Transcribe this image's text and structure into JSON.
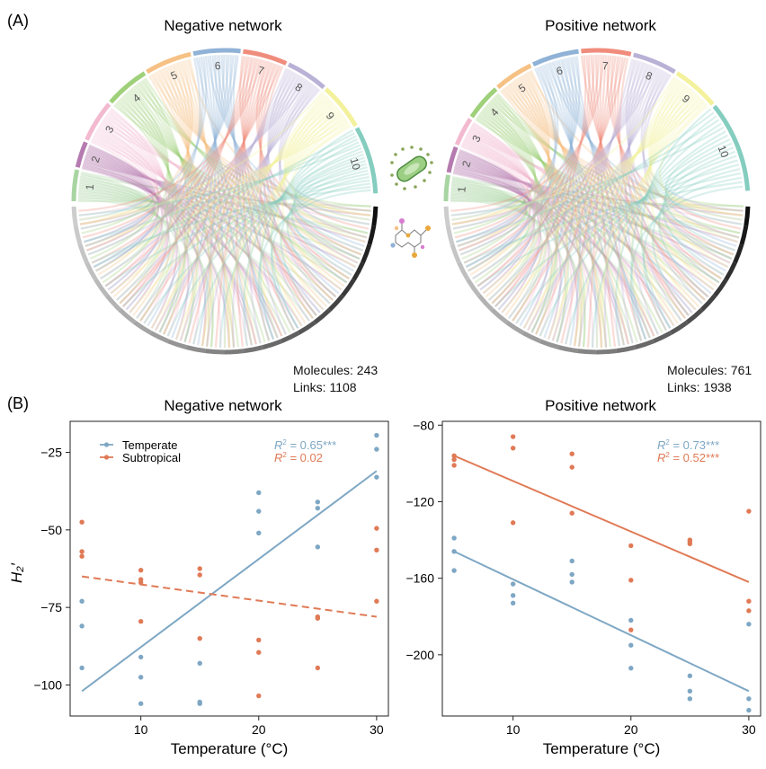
{
  "panel_a": {
    "label": "(A)",
    "negative": {
      "title": "Negative network",
      "molecules_label": "Molecules: 243",
      "links_label": "Links: 1108",
      "sectors": [
        "1",
        "2",
        "3",
        "4",
        "5",
        "6",
        "7",
        "8",
        "9",
        "10"
      ]
    },
    "positive": {
      "title": "Positive network",
      "molecules_label": "Molecules: 761",
      "links_label": "Links: 1938",
      "sectors": [
        "1",
        "2",
        "3",
        "4",
        "5",
        "6",
        "7",
        "8",
        "9",
        "10"
      ]
    },
    "sector_colors": [
      "#a8d5a2",
      "#b57bb0",
      "#f2b9cf",
      "#9fd07a",
      "#f6c184",
      "#8fb2d6",
      "#f08c7c",
      "#b9b1d6",
      "#f3f19b",
      "#84cdbf"
    ]
  },
  "panel_b": {
    "label": "(B)",
    "legend": [
      {
        "name": "Temperate",
        "color": "#7ea7c4"
      },
      {
        "name": "Subtropical",
        "color": "#e07a56"
      }
    ]
  },
  "chart_data": [
    {
      "type": "scatter",
      "title": "Negative network",
      "xlabel": "Temperature (°C)",
      "ylabel": "H₂′",
      "xlim": [
        4,
        31
      ],
      "ylim": [
        -110,
        -15
      ],
      "xticks": [
        10,
        20,
        30
      ],
      "yticks": [
        -25,
        -50,
        -75,
        -100
      ],
      "series": [
        {
          "name": "Temperate",
          "color": "#7ea7c4",
          "annotation_r2": "0.65",
          "annotation_sig": "***",
          "fit": {
            "x": [
              5,
              30
            ],
            "y": [
              -102,
              -31
            ],
            "style": "solid"
          },
          "points": [
            [
              5,
              -73
            ],
            [
              5,
              -81
            ],
            [
              5,
              -94.5
            ],
            [
              10,
              -91
            ],
            [
              10,
              -97.5
            ],
            [
              10,
              -106
            ],
            [
              15,
              -93
            ],
            [
              15,
              -105.5
            ],
            [
              15,
              -106
            ],
            [
              20,
              -38
            ],
            [
              20,
              -44
            ],
            [
              20,
              -51
            ],
            [
              25,
              -41
            ],
            [
              25,
              -43
            ],
            [
              25,
              -55.5
            ],
            [
              30,
              -19.5
            ],
            [
              30,
              -24
            ],
            [
              30,
              -33
            ]
          ]
        },
        {
          "name": "Subtropical",
          "color": "#e07a56",
          "annotation_r2": "0.02",
          "annotation_sig": "",
          "fit": {
            "x": [
              5,
              30
            ],
            "y": [
              -65,
              -78
            ],
            "style": "dashed"
          },
          "points": [
            [
              5,
              -47.5
            ],
            [
              5,
              -57
            ],
            [
              5,
              -58.5
            ],
            [
              10,
              -63
            ],
            [
              10,
              -66
            ],
            [
              10,
              -67
            ],
            [
              10,
              -79.5
            ],
            [
              15,
              -62.5
            ],
            [
              15,
              -64.5
            ],
            [
              15,
              -85
            ],
            [
              20,
              -85.5
            ],
            [
              20,
              -89.5
            ],
            [
              20,
              -103.5
            ],
            [
              25,
              -78
            ],
            [
              25,
              -78.5
            ],
            [
              25,
              -94.5
            ],
            [
              30,
              -49.5
            ],
            [
              30,
              -56.5
            ],
            [
              30,
              -73
            ]
          ]
        }
      ]
    },
    {
      "type": "scatter",
      "title": "Positive network",
      "xlabel": "Temperature (°C)",
      "ylabel": "",
      "xlim": [
        4,
        31
      ],
      "ylim": [
        -232,
        -78
      ],
      "xticks": [
        10,
        20,
        30
      ],
      "yticks": [
        -80,
        -120,
        -160,
        -200
      ],
      "series": [
        {
          "name": "Temperate",
          "color": "#7ea7c4",
          "annotation_r2": "0.73",
          "annotation_sig": "***",
          "fit": {
            "x": [
              5,
              30
            ],
            "y": [
              -146,
              -219
            ],
            "style": "solid"
          },
          "points": [
            [
              5,
              -139
            ],
            [
              5,
              -146
            ],
            [
              5,
              -156
            ],
            [
              10,
              -163
            ],
            [
              10,
              -169
            ],
            [
              10,
              -173
            ],
            [
              15,
              -151
            ],
            [
              15,
              -158
            ],
            [
              15,
              -162
            ],
            [
              20,
              -182
            ],
            [
              20,
              -195
            ],
            [
              20,
              -207
            ],
            [
              25,
              -211
            ],
            [
              25,
              -219
            ],
            [
              25,
              -223
            ],
            [
              30,
              -184
            ],
            [
              30,
              -223
            ],
            [
              30,
              -229
            ]
          ]
        },
        {
          "name": "Subtropical",
          "color": "#e07a56",
          "annotation_r2": "0.52",
          "annotation_sig": "***",
          "fit": {
            "x": [
              5,
              30
            ],
            "y": [
              -96,
              -162
            ],
            "style": "solid"
          },
          "points": [
            [
              5,
              -96
            ],
            [
              5,
              -98
            ],
            [
              5,
              -101
            ],
            [
              10,
              -86
            ],
            [
              10,
              -92
            ],
            [
              10,
              -131
            ],
            [
              15,
              -95
            ],
            [
              15,
              -102
            ],
            [
              15,
              -126
            ],
            [
              20,
              -143
            ],
            [
              20,
              -161
            ],
            [
              20,
              -187
            ],
            [
              25,
              -140
            ],
            [
              25,
              -141
            ],
            [
              25,
              -142
            ],
            [
              30,
              -125
            ],
            [
              30,
              -172
            ],
            [
              30,
              -177
            ]
          ]
        }
      ]
    }
  ]
}
